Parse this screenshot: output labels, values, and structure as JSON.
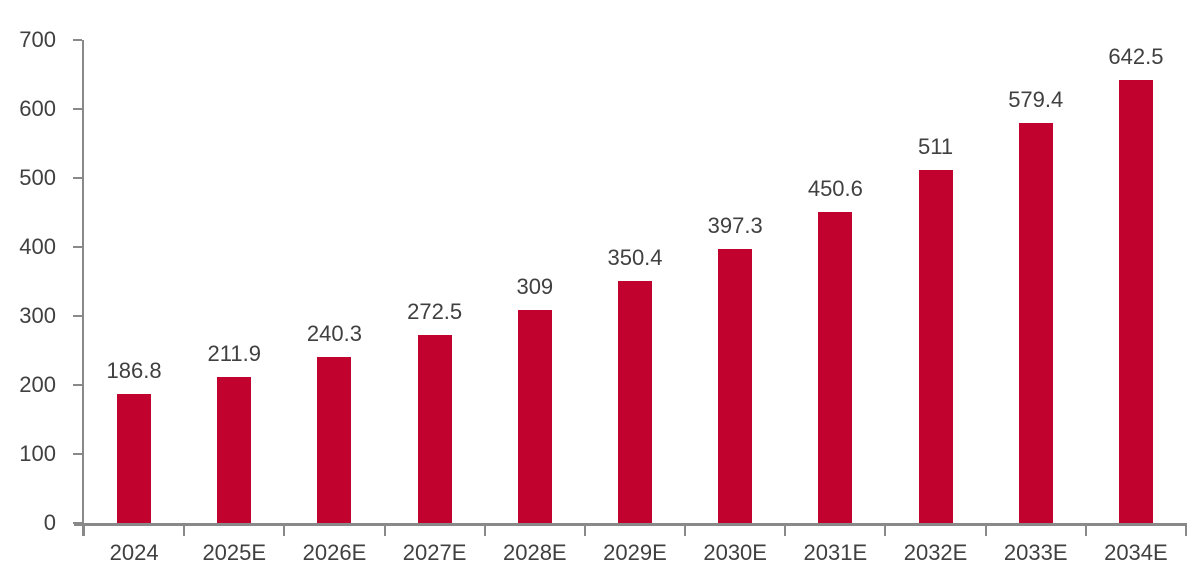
{
  "chart_data": {
    "type": "bar",
    "title": "",
    "xlabel": "",
    "ylabel": "",
    "categories": [
      "2024",
      "2025E",
      "2026E",
      "2027E",
      "2028E",
      "2029E",
      "2030E",
      "2031E",
      "2032E",
      "2033E",
      "2034E"
    ],
    "values": [
      186.8,
      211.9,
      240.3,
      272.5,
      309,
      350.4,
      397.3,
      450.6,
      511,
      579.4,
      642.5
    ],
    "value_labels": [
      "186.8",
      "211.9",
      "240.3",
      "272.5",
      "309",
      "350.4",
      "397.3",
      "450.6",
      "511",
      "579.4",
      "642.5"
    ],
    "ylim": [
      0,
      700
    ],
    "yticks": [
      0,
      100,
      200,
      300,
      400,
      500,
      600,
      700
    ],
    "grid": false,
    "legend": false,
    "layout_hints": {
      "tick_marks": "outside",
      "data_labels": "above bars"
    },
    "colors": {
      "bar": "#C1022F",
      "axis": "#898989",
      "text": "#404040"
    }
  }
}
